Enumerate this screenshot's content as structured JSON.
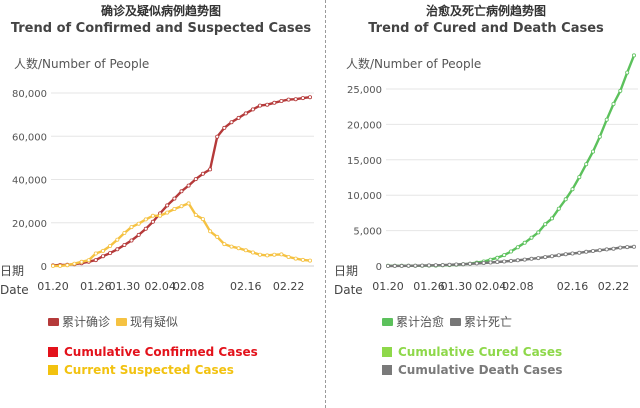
{
  "left_panel": {
    "title_cn": "确诊及疑似病例趋势图",
    "title_en": "Trend of Confirmed and Suspected Cases",
    "y_unit": "人数/Number of People",
    "x_axis_cn": "日期",
    "x_axis_en": "Date",
    "legend": [
      {
        "label": "累计确诊",
        "color": "#b53a3a"
      },
      {
        "label": "现有疑似",
        "color": "#f5c242"
      }
    ],
    "captions": [
      {
        "label": "Cumulative Confirmed Cases",
        "color": "#e3121b"
      },
      {
        "label": "Current Suspected Cases",
        "color": "#f2c210"
      }
    ]
  },
  "right_panel": {
    "title_cn": "治愈及死亡病例趋势图",
    "title_en": "Trend of Cured and Death Cases",
    "y_unit": "人数/Number of People",
    "x_axis_cn": "日期",
    "x_axis_en": "Date",
    "legend": [
      {
        "label": "累计治愈",
        "color": "#5cc15c"
      },
      {
        "label": "累计死亡",
        "color": "#777777"
      }
    ],
    "captions": [
      {
        "label": "Cumulative Cured Cases",
        "color": "#8ed84a"
      },
      {
        "label": "Cumulative Death Cases",
        "color": "#7a7a7a"
      }
    ]
  },
  "chart_data": [
    {
      "type": "line",
      "title": "Trend of Confirmed and Suspected Cases",
      "ylabel": "人数/Number of People",
      "xlabel": "日期 Date",
      "ylim": [
        0,
        80000
      ],
      "yticks": [
        "0",
        "20,000",
        "40,000",
        "60,000",
        "80,000"
      ],
      "yticks_values": [
        0,
        20000,
        40000,
        60000,
        80000
      ],
      "xticks": [
        "01.20",
        "01.26",
        "01.30",
        "02.04",
        "02.08",
        "02.16",
        "02.22"
      ],
      "xticks_dayindex": [
        0,
        6,
        10,
        15,
        19,
        27,
        33
      ],
      "x_count": 37,
      "series": [
        {
          "name": "累计确诊",
          "color": "#b53a3a",
          "values": [
            291,
            440,
            571,
            830,
            1287,
            1975,
            2744,
            4515,
            5974,
            7711,
            9692,
            11791,
            14380,
            17205,
            20438,
            24324,
            28018,
            31161,
            34546,
            37198,
            40171,
            42638,
            44653,
            59804,
            63851,
            66492,
            68500,
            70548,
            72436,
            74185,
            74576,
            75465,
            76288,
            76936,
            77150,
            77658,
            78064
          ]
        },
        {
          "name": "现有疑似",
          "color": "#f5c242",
          "values": [
            54,
            37,
            393,
            1072,
            1965,
            2684,
            5794,
            6973,
            9239,
            12167,
            15238,
            17988,
            19544,
            21558,
            23214,
            23260,
            24702,
            26359,
            27657,
            28942,
            23589,
            21675,
            16067,
            13435,
            10109,
            8969,
            8228,
            7264,
            6242,
            5248,
            4922,
            5206,
            5365,
            4148,
            3434,
            2824,
            2491
          ]
        }
      ]
    },
    {
      "type": "line",
      "title": "Trend of Cured and Death Cases",
      "ylabel": "人数/Number of People",
      "xlabel": "日期 Date",
      "ylim": [
        0,
        25000
      ],
      "yticks": [
        "0",
        "5,000",
        "10,000",
        "15,000",
        "20,000",
        "25,000"
      ],
      "yticks_values": [
        0,
        5000,
        10000,
        15000,
        20000,
        25000
      ],
      "xticks": [
        "01.20",
        "01.26",
        "01.30",
        "02.04",
        "02.08",
        "02.16",
        "02.22"
      ],
      "xticks_dayindex": [
        0,
        6,
        10,
        15,
        19,
        27,
        33
      ],
      "x_count": 37,
      "series": [
        {
          "name": "累计治愈",
          "color": "#5cc15c",
          "values": [
            25,
            25,
            28,
            34,
            38,
            49,
            51,
            60,
            103,
            124,
            171,
            243,
            328,
            475,
            632,
            892,
            1153,
            1540,
            2050,
            2649,
            3281,
            3996,
            4740,
            5911,
            6723,
            8096,
            9419,
            10844,
            12552,
            14376,
            16155,
            18264,
            20659,
            22888,
            24734,
            27323,
            29745
          ]
        },
        {
          "name": "累计死亡",
          "color": "#777777",
          "values": [
            6,
            9,
            17,
            25,
            41,
            56,
            80,
            106,
            132,
            170,
            213,
            259,
            304,
            361,
            425,
            490,
            563,
            636,
            722,
            811,
            908,
            1016,
            1113,
            1259,
            1380,
            1523,
            1665,
            1770,
            1868,
            2004,
            2118,
            2236,
            2345,
            2442,
            2592,
            2663,
            2715
          ]
        }
      ]
    }
  ]
}
